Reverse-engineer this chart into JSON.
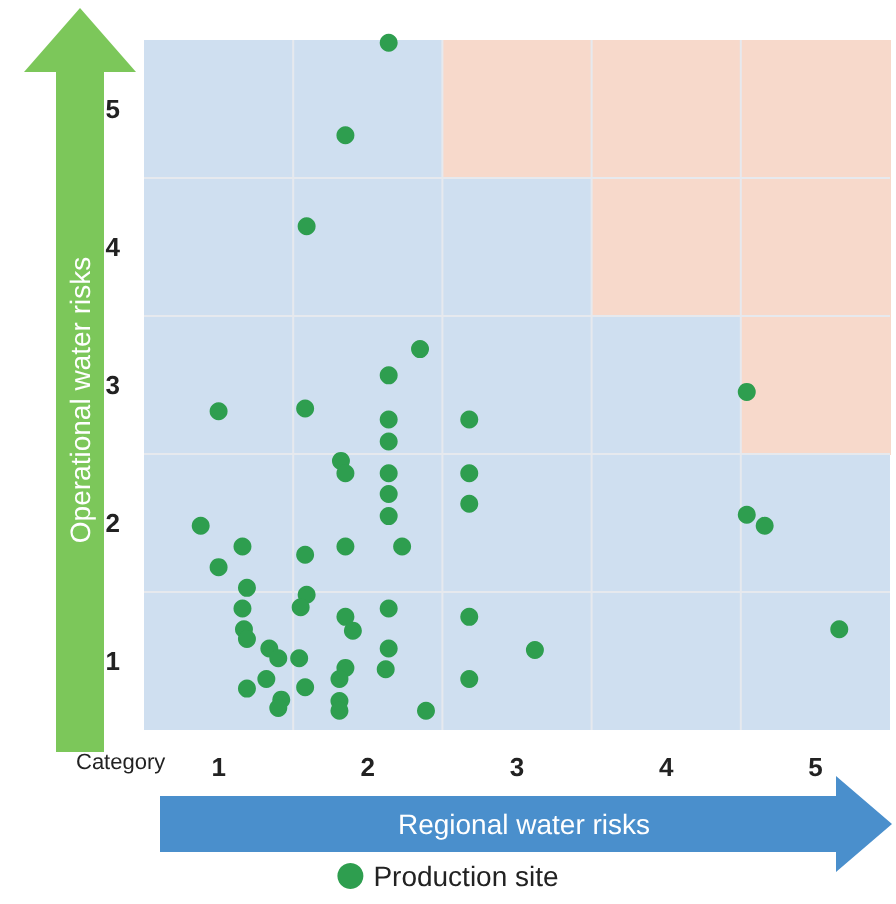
{
  "chart_data": {
    "type": "scatter",
    "xlabel": "Regional water risks",
    "ylabel": "Operational water risks",
    "annotations": [
      "Category"
    ],
    "xlim": [
      0.5,
      5.5
    ],
    "ylim": [
      0.5,
      5.5
    ],
    "xticks": [
      1,
      {
        "value": 1.5,
        "label": null
      },
      2,
      {
        "value": 2.5,
        "label": null
      },
      3,
      {
        "value": 3.5,
        "label": null
      },
      4,
      {
        "value": 4.5,
        "label": null
      },
      5
    ],
    "yticks": [
      1,
      {
        "value": 1.5,
        "label": null
      },
      2,
      {
        "value": 2.5,
        "label": null
      },
      3,
      {
        "value": 3.5,
        "label": null
      },
      4,
      {
        "value": 4.5,
        "label": null
      },
      5
    ],
    "grid": true,
    "legend": "bottom",
    "marker": "circle",
    "series": [
      {
        "name": "Production site",
        "color": "#2e9e4f",
        "x": [
          2.14,
          1.85,
          1.59,
          2.35,
          2.14,
          1.0,
          1.58,
          2.14,
          2.14,
          2.68,
          1.82,
          1.85,
          2.14,
          2.14,
          2.14,
          2.68,
          2.68,
          0.88,
          1.16,
          1.58,
          1.85,
          2.23,
          1.0,
          1.19,
          1.59,
          1.55,
          1.16,
          1.85,
          1.9,
          2.14,
          2.68,
          1.17,
          1.19,
          1.34,
          1.4,
          1.54,
          2.14,
          2.12,
          1.85,
          1.81,
          1.32,
          1.19,
          1.58,
          1.42,
          1.4,
          1.81,
          1.81,
          2.39,
          2.68,
          4.54,
          4.54,
          4.66,
          5.16,
          3.12
        ],
        "values": [
          5.48,
          4.81,
          4.15,
          3.26,
          3.07,
          2.81,
          2.83,
          2.75,
          2.59,
          2.75,
          2.45,
          2.36,
          2.36,
          2.21,
          2.05,
          2.36,
          2.14,
          1.98,
          1.83,
          1.77,
          1.83,
          1.83,
          1.68,
          1.53,
          1.48,
          1.39,
          1.38,
          1.32,
          1.22,
          1.38,
          1.32,
          1.23,
          1.16,
          1.09,
          1.02,
          1.02,
          1.09,
          0.94,
          0.95,
          0.87,
          0.87,
          0.8,
          0.81,
          0.72,
          0.66,
          0.71,
          0.64,
          0.64,
          0.87,
          2.95,
          2.06,
          1.98,
          1.23,
          1.08
        ]
      }
    ]
  }
}
